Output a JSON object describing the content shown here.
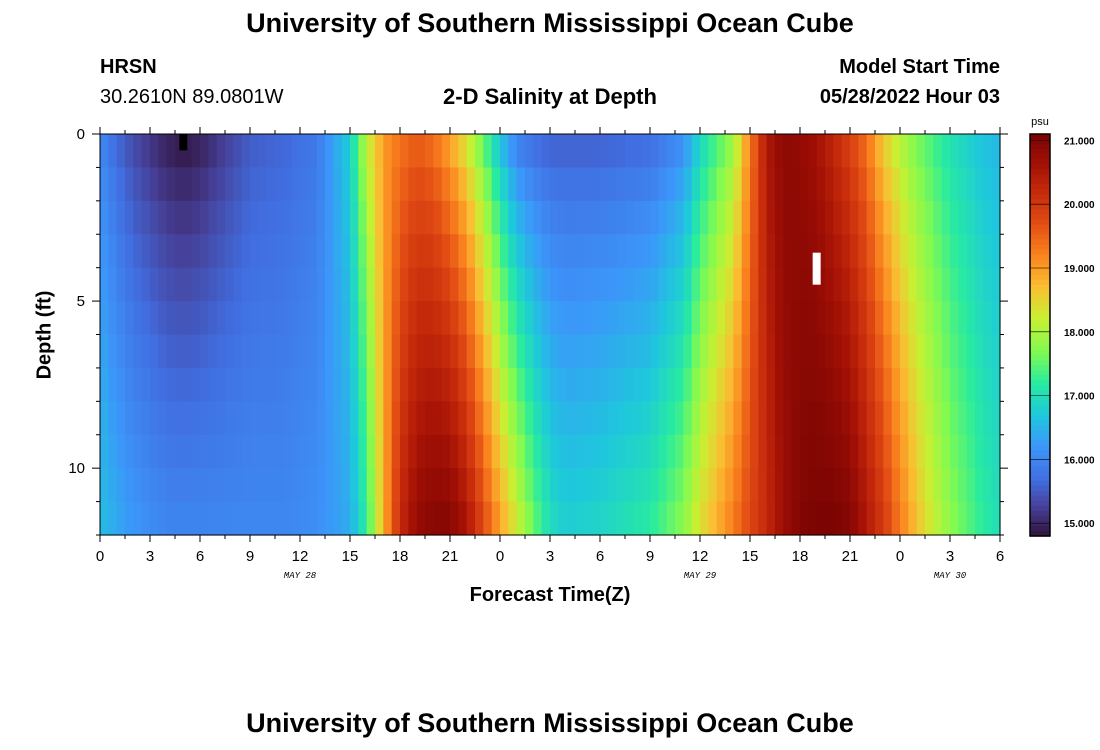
{
  "header": {
    "title": "University of Southern Mississippi Ocean Cube",
    "station": "HRSN",
    "coordinates": "30.2610N  89.0801W",
    "subtitle": "2-D Salinity at Depth",
    "model_start_label": "Model Start Time",
    "model_start_time": "05/28/2022 Hour 03"
  },
  "footer": {
    "title": "University of Southern Mississippi Ocean Cube"
  },
  "chart_data": {
    "type": "heatmap",
    "xlabel": "Forecast Time(Z)",
    "ylabel": "Depth (ft)",
    "x_range_hours": [
      0,
      54
    ],
    "x_tick_labels": [
      "0",
      "3",
      "6",
      "9",
      "12",
      "15",
      "18",
      "21",
      "0",
      "3",
      "6",
      "9",
      "12",
      "15",
      "18",
      "21",
      "0",
      "3",
      "6"
    ],
    "day_labels": [
      {
        "text": "MAY 28",
        "hour": 12
      },
      {
        "text": "MAY 29",
        "hour": 36
      },
      {
        "text": "MAY 30",
        "hour": 51
      }
    ],
    "y_range_ft": [
      0,
      12
    ],
    "y_tick_values": [
      0,
      5,
      10
    ],
    "colorbar": {
      "unit": "psu",
      "min": 14.8,
      "max": 21.1,
      "tick_labels": [
        "21.000",
        "20.000",
        "19.000",
        "18.000",
        "17.000",
        "16.000",
        "15.000"
      ],
      "tick_values": [
        21,
        20,
        19,
        18,
        17,
        16,
        15
      ]
    },
    "salinity_profile": {
      "hours": [
        0,
        1,
        2,
        3,
        4,
        5,
        6,
        7,
        8,
        9,
        11,
        13,
        15,
        16,
        17,
        18,
        19,
        20,
        21,
        22,
        23,
        24,
        25,
        26,
        27,
        28,
        30,
        33,
        35,
        36,
        38,
        39,
        40,
        41,
        42,
        43,
        44,
        45,
        46,
        47,
        48,
        49,
        50,
        51,
        52,
        53,
        54
      ],
      "surface_psu": [
        16.0,
        15.6,
        15.3,
        15.1,
        14.9,
        14.8,
        14.9,
        15.1,
        15.3,
        15.5,
        15.6,
        15.8,
        16.8,
        18.2,
        19.0,
        19.3,
        19.5,
        19.3,
        18.8,
        18.2,
        17.4,
        16.5,
        15.8,
        15.6,
        15.5,
        15.5,
        15.5,
        15.6,
        16.0,
        16.8,
        17.8,
        19.2,
        20.5,
        20.9,
        20.8,
        20.6,
        20.2,
        19.8,
        19.3,
        18.5,
        18.0,
        17.6,
        17.3,
        17.0,
        16.8,
        16.6,
        16.5
      ],
      "bottom_psu": [
        16.6,
        16.4,
        16.2,
        16.1,
        16.0,
        16.0,
        16.0,
        16.0,
        16.0,
        16.0,
        16.0,
        16.1,
        16.4,
        17.2,
        18.8,
        20.2,
        20.8,
        21.0,
        21.0,
        20.6,
        19.8,
        19.0,
        18.3,
        17.6,
        17.0,
        16.8,
        16.9,
        17.2,
        17.8,
        18.4,
        19.3,
        19.8,
        20.2,
        20.7,
        21.0,
        21.1,
        21.1,
        21.0,
        20.5,
        20.0,
        19.3,
        18.7,
        18.2,
        17.8,
        17.5,
        17.2,
        17.0
      ]
    },
    "markers": [
      {
        "hour": 5,
        "depth_ft": 0.25,
        "color": "#000000"
      },
      {
        "hour": 43,
        "depth_ft": 4.0,
        "color": "#ffffff"
      }
    ]
  }
}
